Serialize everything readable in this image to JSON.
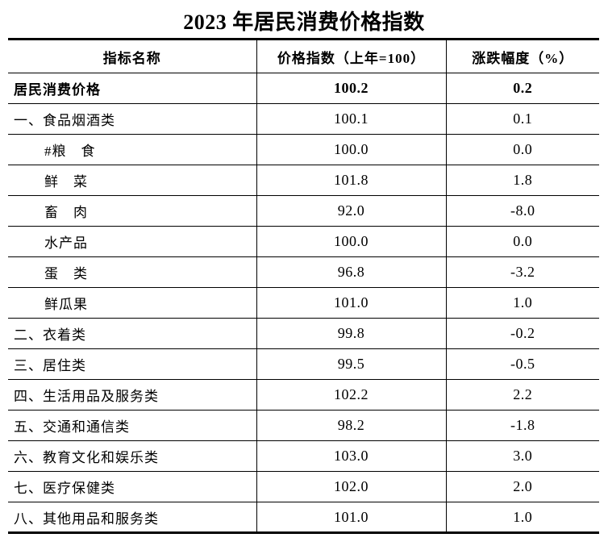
{
  "title": "2023 年居民消费价格指数",
  "table": {
    "headers": {
      "indicator": "指标名称",
      "price_index": "价格指数（上年=100）",
      "change": "涨跌幅度（%）"
    },
    "rows": [
      {
        "label": "居民消费价格",
        "index": "100.2",
        "change": "0.2"
      },
      {
        "label": "一、食品烟酒类",
        "index": "100.1",
        "change": "0.1"
      },
      {
        "label": "#粮　食",
        "index": "100.0",
        "change": "0.0"
      },
      {
        "label": "鲜　菜",
        "index": "101.8",
        "change": "1.8"
      },
      {
        "label": "畜　肉",
        "index": "92.0",
        "change": "-8.0"
      },
      {
        "label": "水产品",
        "index": "100.0",
        "change": "0.0"
      },
      {
        "label": "蛋　类",
        "index": "96.8",
        "change": "-3.2"
      },
      {
        "label": "鲜瓜果",
        "index": "101.0",
        "change": "1.0"
      },
      {
        "label": "二、衣着类",
        "index": "99.8",
        "change": "-0.2"
      },
      {
        "label": "三、居住类",
        "index": "99.5",
        "change": "-0.5"
      },
      {
        "label": "四、生活用品及服务类",
        "index": "102.2",
        "change": "2.2"
      },
      {
        "label": "五、交通和通信类",
        "index": "98.2",
        "change": "-1.8"
      },
      {
        "label": "六、教育文化和娱乐类",
        "index": "103.0",
        "change": "3.0"
      },
      {
        "label": "七、医疗保健类",
        "index": "102.0",
        "change": "2.0"
      },
      {
        "label": "八、其他用品和服务类",
        "index": "101.0",
        "change": "1.0"
      }
    ]
  }
}
